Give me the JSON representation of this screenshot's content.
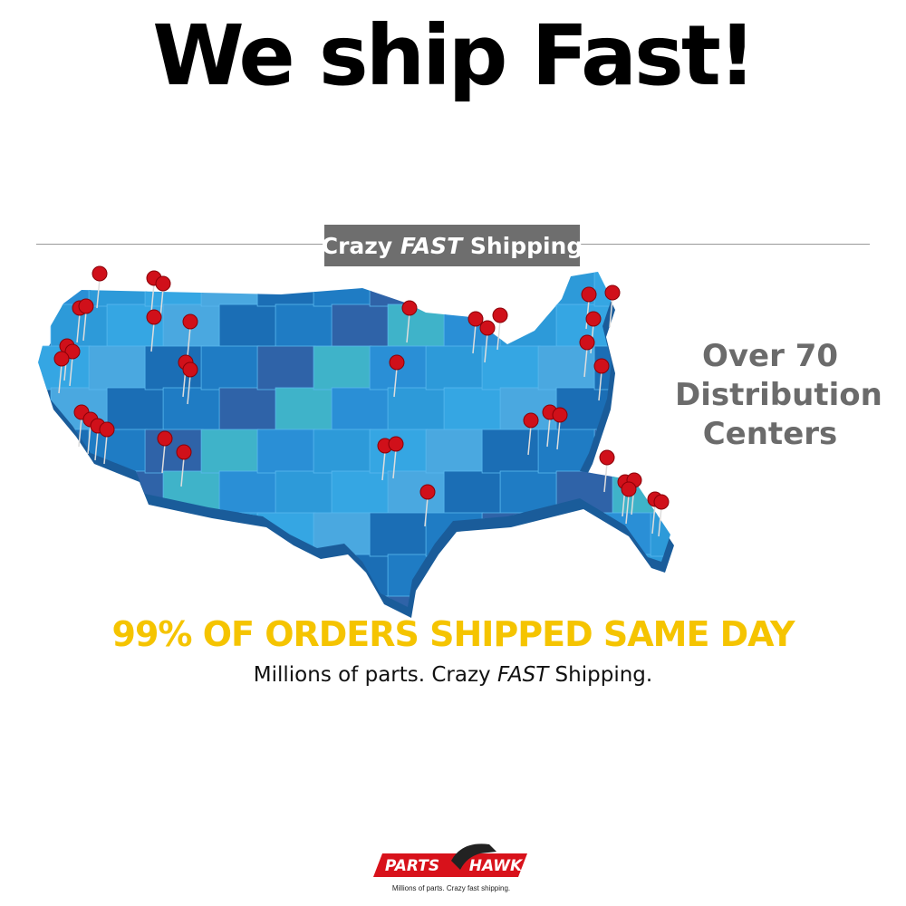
{
  "header": {
    "title": "We ship Fast!"
  },
  "banner": {
    "parts": [
      "Crazy ",
      "FAST",
      " Shipping"
    ]
  },
  "side_note": {
    "lines": [
      "Over 70",
      "Distribution",
      "Centers"
    ]
  },
  "headline": "99% OF ORDERS SHIPPED SAME DAY",
  "tagline": {
    "parts": [
      "Millions of parts. Crazy ",
      "FAST",
      " Shipping."
    ]
  },
  "logo": {
    "left": "PARTS",
    "right": "HAWK",
    "slogan": "Millions of parts. Crazy fast shipping."
  }
}
